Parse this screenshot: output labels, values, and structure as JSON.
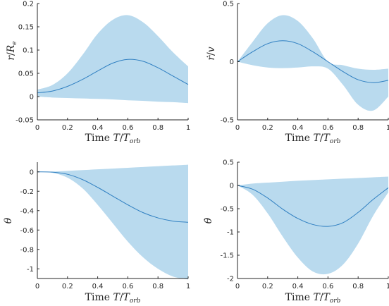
{
  "colors": {
    "band": "#b9daee",
    "line": "#2f7fc1",
    "axis": "#262626"
  },
  "chart_data": [
    {
      "type": "area",
      "xlabel": "Time T/T_orb",
      "ylabel": "r/R_e",
      "xlim": [
        0,
        1
      ],
      "ylim": [
        -0.05,
        0.2
      ],
      "xticks": [
        "0",
        "0.2",
        "0.4",
        "0.6",
        "0.8",
        "1"
      ],
      "yticks": [
        "-0.05",
        "0",
        "0.05",
        "0.1",
        "0.15",
        "0.2"
      ],
      "x": [
        0,
        0.1,
        0.2,
        0.3,
        0.4,
        0.5,
        0.6,
        0.7,
        0.8,
        0.9,
        1.0
      ],
      "mean": [
        0.008,
        0.012,
        0.022,
        0.037,
        0.055,
        0.072,
        0.08,
        0.076,
        0.062,
        0.044,
        0.026
      ],
      "upper": [
        0.015,
        0.025,
        0.05,
        0.09,
        0.135,
        0.165,
        0.175,
        0.16,
        0.13,
        0.095,
        0.065
      ],
      "lower": [
        0.0,
        -0.002,
        -0.003,
        -0.004,
        -0.005,
        -0.006,
        -0.008,
        -0.009,
        -0.011,
        -0.012,
        -0.014
      ]
    },
    {
      "type": "area",
      "xlabel": "Time T/T_orb",
      "ylabel": "ṙ/v",
      "xlim": [
        0,
        1
      ],
      "ylim": [
        -0.5,
        0.5
      ],
      "xticks": [
        "0",
        "0.2",
        "0.4",
        "0.6",
        "0.8",
        "1"
      ],
      "yticks": [
        "-0.5",
        "0",
        "0.5"
      ],
      "x": [
        0,
        0.1,
        0.2,
        0.3,
        0.4,
        0.5,
        0.6,
        0.7,
        0.8,
        0.9,
        1.0
      ],
      "mean": [
        0.0,
        0.085,
        0.155,
        0.18,
        0.155,
        0.085,
        0.0,
        -0.085,
        -0.155,
        -0.18,
        -0.16
      ],
      "upper": [
        0.0,
        0.17,
        0.33,
        0.4,
        0.35,
        0.2,
        0.0,
        -0.03,
        -0.06,
        -0.07,
        -0.06
      ],
      "lower": [
        0.0,
        -0.03,
        -0.05,
        -0.055,
        -0.05,
        -0.04,
        -0.06,
        -0.2,
        -0.37,
        -0.42,
        -0.3
      ]
    },
    {
      "type": "area",
      "xlabel": "Time T/T_orb",
      "ylabel": "θ",
      "xlim": [
        0,
        1
      ],
      "ylim": [
        -1.1,
        0.1
      ],
      "xticks": [
        "0",
        "0.2",
        "0.4",
        "0.6",
        "0.8",
        "1"
      ],
      "yticks": [
        "0",
        "-0.2",
        "-0.4",
        "-0.6",
        "-0.8",
        "-1"
      ],
      "x": [
        0,
        0.1,
        0.2,
        0.3,
        0.4,
        0.5,
        0.6,
        0.7,
        0.8,
        0.9,
        1.0
      ],
      "mean": [
        0.0,
        -0.003,
        -0.025,
        -0.08,
        -0.16,
        -0.25,
        -0.34,
        -0.42,
        -0.475,
        -0.508,
        -0.52
      ],
      "upper": [
        0.0,
        0.003,
        0.01,
        0.018,
        0.026,
        0.034,
        0.042,
        0.05,
        0.058,
        0.066,
        0.074
      ],
      "lower": [
        0.0,
        -0.01,
        -0.06,
        -0.17,
        -0.34,
        -0.53,
        -0.72,
        -0.88,
        -1.0,
        -1.08,
        -1.11
      ]
    },
    {
      "type": "area",
      "xlabel": "Time T/T_orb",
      "ylabel": "θ̇",
      "xlim": [
        0,
        1
      ],
      "ylim": [
        -2,
        0.5
      ],
      "xticks": [
        "0",
        "0.2",
        "0.4",
        "0.6",
        "0.8",
        "1"
      ],
      "yticks": [
        "0.5",
        "0",
        "-0.5",
        "-1",
        "-1.5",
        "-2"
      ],
      "x": [
        0,
        0.1,
        0.2,
        0.3,
        0.4,
        0.5,
        0.6,
        0.7,
        0.8,
        0.9,
        1.0
      ],
      "mean": [
        0.0,
        -0.08,
        -0.27,
        -0.51,
        -0.71,
        -0.84,
        -0.88,
        -0.8,
        -0.58,
        -0.3,
        -0.05
      ],
      "upper": [
        0.0,
        0.04,
        0.06,
        0.08,
        0.1,
        0.115,
        0.13,
        0.145,
        0.16,
        0.175,
        0.19
      ],
      "lower": [
        0.0,
        -0.2,
        -0.6,
        -1.1,
        -1.55,
        -1.85,
        -1.9,
        -1.7,
        -1.25,
        -0.65,
        -0.15
      ]
    }
  ]
}
